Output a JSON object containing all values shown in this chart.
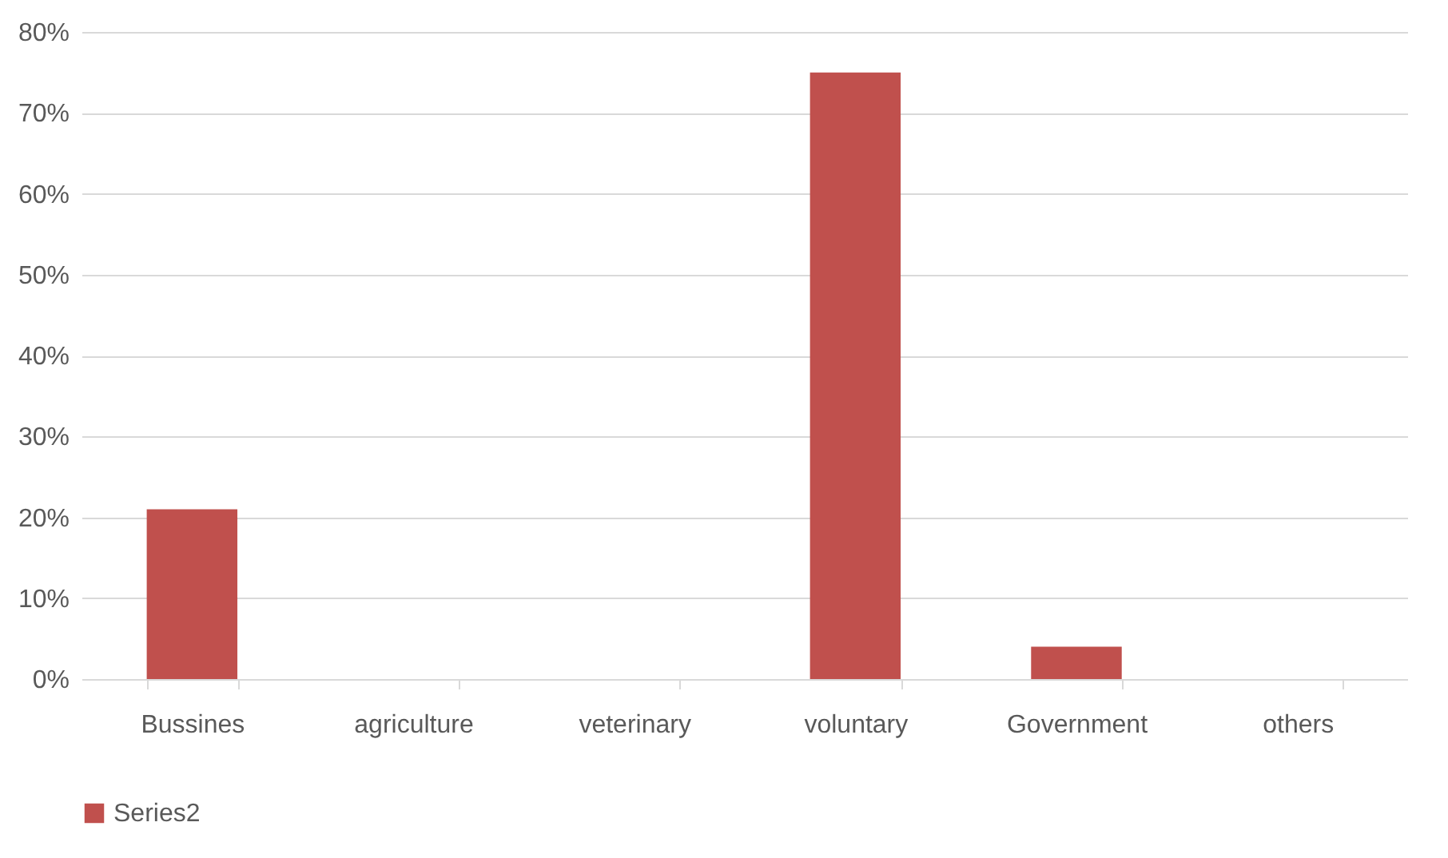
{
  "chart_data": {
    "type": "bar",
    "categories": [
      "Bussines",
      "agriculture",
      "veterinary",
      "voluntary",
      "Government",
      "others"
    ],
    "series": [
      {
        "name": "Series2",
        "color": "#c0504d",
        "values": [
          21,
          0,
          0,
          75,
          4,
          0
        ]
      }
    ],
    "ylim": [
      0,
      80
    ],
    "yticks": [
      {
        "value": 0,
        "label": "0%"
      },
      {
        "value": 10,
        "label": "10%"
      },
      {
        "value": 20,
        "label": "20%"
      },
      {
        "value": 30,
        "label": "30%"
      },
      {
        "value": 40,
        "label": "40%"
      },
      {
        "value": 50,
        "label": "50%"
      },
      {
        "value": 60,
        "label": "60%"
      },
      {
        "value": 70,
        "label": "70%"
      },
      {
        "value": 80,
        "label": "80%"
      }
    ],
    "grid": "y",
    "legend": "bottom"
  }
}
